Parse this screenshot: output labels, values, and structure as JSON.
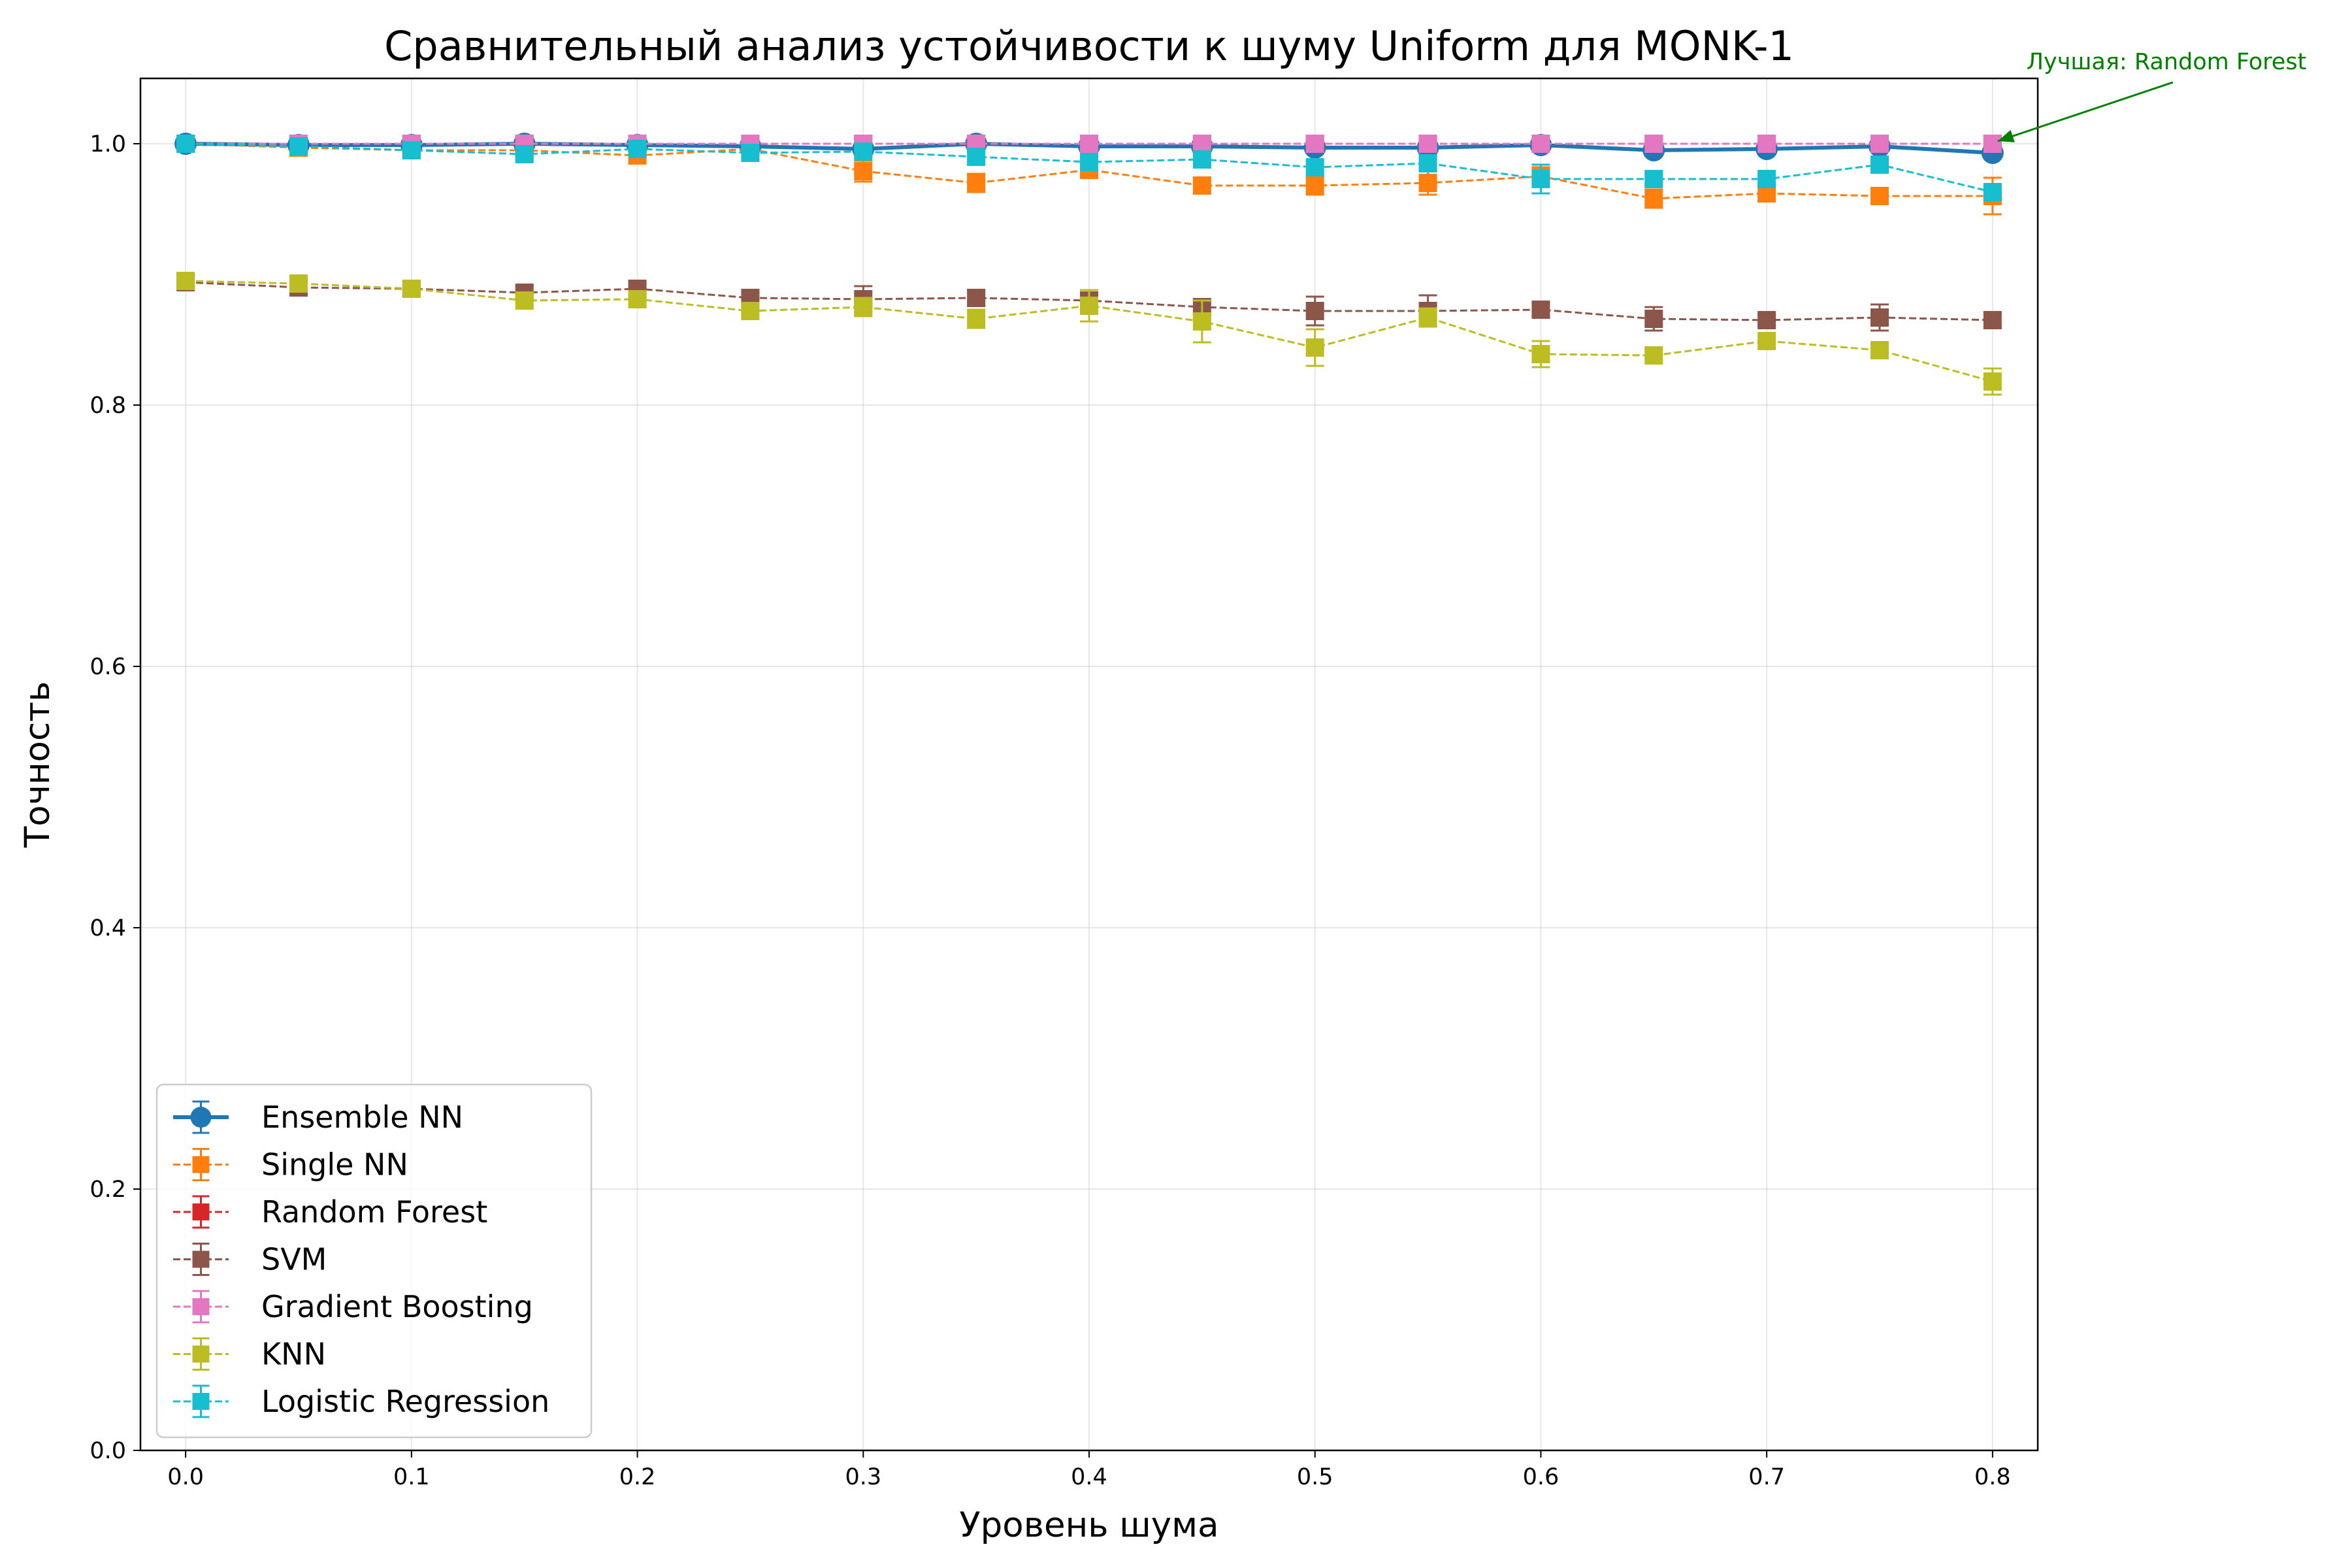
{
  "chart_data": {
    "type": "line",
    "title": "Сравнительный анализ устойчивости к шуму Uniform для MONK-1",
    "xlabel": "Уровень шума",
    "ylabel": "Точность",
    "xlim": [
      -0.02,
      0.82
    ],
    "ylim": [
      0.0,
      1.05
    ],
    "xticks": [
      0.0,
      0.1,
      0.2,
      0.3,
      0.4,
      0.5,
      0.6,
      0.7,
      0.8
    ],
    "xtick_labels": [
      "0.0",
      "0.1",
      "0.2",
      "0.3",
      "0.4",
      "0.5",
      "0.6",
      "0.7",
      "0.8"
    ],
    "yticks": [
      0.0,
      0.2,
      0.4,
      0.6,
      0.8,
      1.0
    ],
    "ytick_labels": [
      "0.0",
      "0.2",
      "0.4",
      "0.6",
      "0.8",
      "1.0"
    ],
    "grid": true,
    "legend_position": "lower-left",
    "x": [
      0.0,
      0.05,
      0.1,
      0.15,
      0.2,
      0.25,
      0.3,
      0.35,
      0.4,
      0.45,
      0.5,
      0.55,
      0.6,
      0.65,
      0.7,
      0.75,
      0.8
    ],
    "series": [
      {
        "name": "Ensemble NN",
        "color": "#1f77b4",
        "style": "solid",
        "marker": "circle",
        "values": [
          1.0,
          0.999,
          0.999,
          1.0,
          0.999,
          0.998,
          0.996,
          1.0,
          0.998,
          0.998,
          0.997,
          0.997,
          0.999,
          0.995,
          0.996,
          0.998,
          0.993
        ],
        "errors": [
          0.002,
          0.002,
          0.002,
          0.002,
          0.002,
          0.002,
          0.003,
          0.002,
          0.002,
          0.002,
          0.003,
          0.003,
          0.002,
          0.003,
          0.003,
          0.002,
          0.004
        ]
      },
      {
        "name": "Single NN",
        "color": "#ff7f0e",
        "style": "dashed",
        "marker": "square",
        "values": [
          1.0,
          0.997,
          0.995,
          0.995,
          0.991,
          0.996,
          0.979,
          0.97,
          0.98,
          0.968,
          0.968,
          0.97,
          0.975,
          0.958,
          0.962,
          0.96,
          0.96
        ],
        "errors": [
          0.002,
          0.004,
          0.005,
          0.005,
          0.006,
          0.004,
          0.008,
          0.007,
          0.006,
          0.006,
          0.007,
          0.009,
          0.007,
          0.007,
          0.006,
          0.006,
          0.014
        ]
      },
      {
        "name": "Random Forest",
        "color": "#d62728",
        "style": "dashed",
        "marker": "square",
        "values": [
          1.0,
          1.0,
          1.0,
          1.0,
          1.0,
          1.0,
          1.0,
          1.0,
          1.0,
          1.0,
          1.0,
          1.0,
          1.0,
          1.0,
          1.0,
          1.0,
          1.0
        ],
        "errors": [
          0.0,
          0.0,
          0.0,
          0.0,
          0.0,
          0.0,
          0.0,
          0.0,
          0.0,
          0.0,
          0.0,
          0.0,
          0.0,
          0.0,
          0.0,
          0.0,
          0.0
        ]
      },
      {
        "name": "SVM",
        "color": "#8c564b",
        "style": "dashed",
        "marker": "square",
        "values": [
          0.894,
          0.89,
          0.889,
          0.886,
          0.889,
          0.882,
          0.881,
          0.882,
          0.88,
          0.875,
          0.872,
          0.872,
          0.873,
          0.866,
          0.865,
          0.867,
          0.865
        ],
        "errors": [
          0.005,
          0.006,
          0.004,
          0.005,
          0.004,
          0.004,
          0.01,
          0.006,
          0.005,
          0.006,
          0.011,
          0.012,
          0.005,
          0.009,
          0.004,
          0.01,
          0.005
        ]
      },
      {
        "name": "Gradient Boosting",
        "color": "#e377c2",
        "style": "dashed",
        "marker": "square",
        "values": [
          1.0,
          1.0,
          1.0,
          1.0,
          1.0,
          1.0,
          1.0,
          1.0,
          1.0,
          1.0,
          1.0,
          1.0,
          1.0,
          1.0,
          1.0,
          1.0,
          1.0
        ],
        "errors": [
          0.0,
          0.0,
          0.0,
          0.0,
          0.0,
          0.0,
          0.0,
          0.0,
          0.0,
          0.0,
          0.0,
          0.0,
          0.0,
          0.0,
          0.0,
          0.0,
          0.0
        ]
      },
      {
        "name": "KNN",
        "color": "#bcbd22",
        "style": "dashed",
        "marker": "square",
        "values": [
          0.895,
          0.893,
          0.889,
          0.88,
          0.881,
          0.872,
          0.875,
          0.866,
          0.876,
          0.864,
          0.844,
          0.867,
          0.839,
          0.838,
          0.849,
          0.842,
          0.818
        ],
        "errors": [
          0.004,
          0.004,
          0.004,
          0.006,
          0.006,
          0.005,
          0.007,
          0.007,
          0.012,
          0.016,
          0.014,
          0.007,
          0.01,
          0.004,
          0.005,
          0.006,
          0.01
        ]
      },
      {
        "name": "Logistic Regression",
        "color": "#17becf",
        "style": "dashed",
        "marker": "square",
        "values": [
          1.0,
          0.998,
          0.995,
          0.992,
          0.996,
          0.993,
          0.994,
          0.99,
          0.986,
          0.988,
          0.982,
          0.985,
          0.973,
          0.973,
          0.973,
          0.984,
          0.963
        ],
        "errors": [
          0.002,
          0.003,
          0.003,
          0.004,
          0.003,
          0.004,
          0.003,
          0.005,
          0.004,
          0.005,
          0.005,
          0.005,
          0.011,
          0.004,
          0.004,
          0.005,
          0.005
        ]
      }
    ],
    "annotations": [
      {
        "text": "Лучшая: Random Forest",
        "x": 0.8,
        "y": 1.0,
        "color": "#008000"
      }
    ]
  }
}
